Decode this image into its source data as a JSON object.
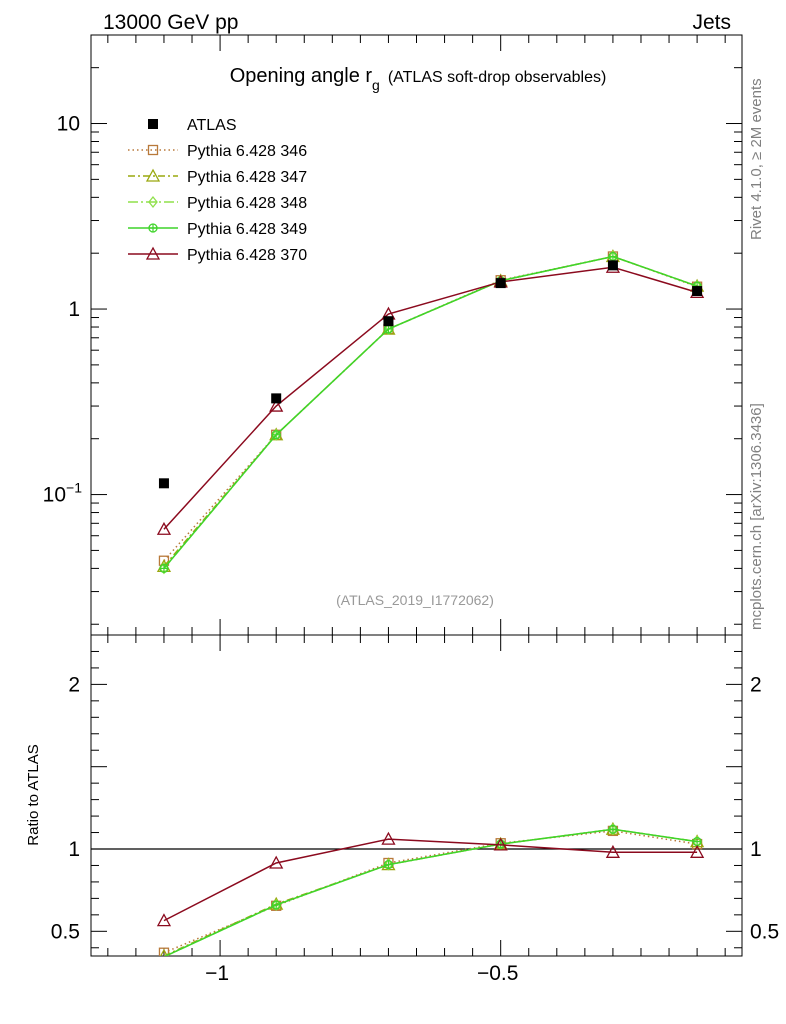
{
  "header": {
    "left": "13000 GeV pp",
    "right": "Jets"
  },
  "side": {
    "rivet": "Rivet 4.1.0, ≥ 2M events",
    "mcplots": "mcplots.cern.ch [arXiv:1306.3436]"
  },
  "colors": {
    "atlas": "#000000",
    "p346": "#b8793a",
    "p347": "#9aa80f",
    "p348": "#8fe04a",
    "p349": "#3fd42a",
    "p370": "#8b0a1e"
  },
  "chart_data": {
    "type": "line",
    "title_main": "Opening angle r",
    "title_sub": "g",
    "title_extra": "(ATLAS soft-drop observables)",
    "analysis_label": "(ATLAS_2019_I1772062)",
    "x_axis": {
      "label": "",
      "range": [
        -1.23,
        -0.07
      ],
      "ticks": [
        -1,
        -0.5
      ],
      "tick_labels": [
        "−1",
        "−0.5"
      ]
    },
    "main_y_axis": {
      "scale": "log",
      "range": [
        0.0175,
        30
      ],
      "tick_labels": [
        {
          "value": 10,
          "base": "10",
          "exp": ""
        },
        {
          "value": 1,
          "base": "1",
          "exp": ""
        },
        {
          "value": 0.1,
          "base": "10",
          "exp": "−1"
        }
      ]
    },
    "ratio_y_axis": {
      "label": "Ratio to ATLAS",
      "range": [
        0.35,
        2.3
      ],
      "tick_labels": [
        "2",
        "1",
        "0.5"
      ],
      "tick_values": [
        2,
        1,
        0.5
      ]
    },
    "x": [
      -1.1,
      -0.9,
      -0.7,
      -0.5,
      -0.3,
      -0.15
    ],
    "series": [
      {
        "key": "atlas",
        "name": "ATLAS",
        "marker": "square-filled",
        "line": "none",
        "values": [
          0.115,
          0.33,
          0.86,
          1.38,
          1.72,
          1.25
        ]
      },
      {
        "key": "p346",
        "name": "Pythia 6.428 346",
        "marker": "square-open",
        "line": "dotted",
        "values": [
          0.044,
          0.21,
          0.78,
          1.43,
          1.92,
          1.32
        ],
        "ratio": [
          0.37,
          0.655,
          0.915,
          1.035,
          1.11,
          1.03
        ]
      },
      {
        "key": "p347",
        "name": "Pythia 6.428 347",
        "marker": "triangle-open",
        "line": "dashdot",
        "values": [
          0.041,
          0.21,
          0.78,
          1.42,
          1.92,
          1.33
        ],
        "ratio": [
          0.35,
          0.665,
          0.905,
          1.03,
          1.12,
          1.045
        ]
      },
      {
        "key": "p348",
        "name": "Pythia 6.428 348",
        "marker": "diamond-open",
        "line": "dashdot2",
        "values": [
          0.04,
          0.21,
          0.78,
          1.42,
          1.92,
          1.33
        ],
        "ratio": [
          0.345,
          0.66,
          0.905,
          1.03,
          1.12,
          1.045
        ]
      },
      {
        "key": "p349",
        "name": "Pythia 6.428 349",
        "marker": "circle-cross",
        "line": "solid",
        "values": [
          0.04,
          0.21,
          0.78,
          1.42,
          1.92,
          1.33
        ],
        "ratio": [
          0.345,
          0.66,
          0.905,
          1.03,
          1.12,
          1.045
        ]
      },
      {
        "key": "p370",
        "name": "Pythia 6.428 370",
        "marker": "triangle-open",
        "line": "solid",
        "values": [
          0.065,
          0.3,
          0.94,
          1.4,
          1.68,
          1.23
        ],
        "ratio": [
          0.565,
          0.915,
          1.06,
          1.025,
          0.98,
          0.98
        ]
      }
    ]
  }
}
